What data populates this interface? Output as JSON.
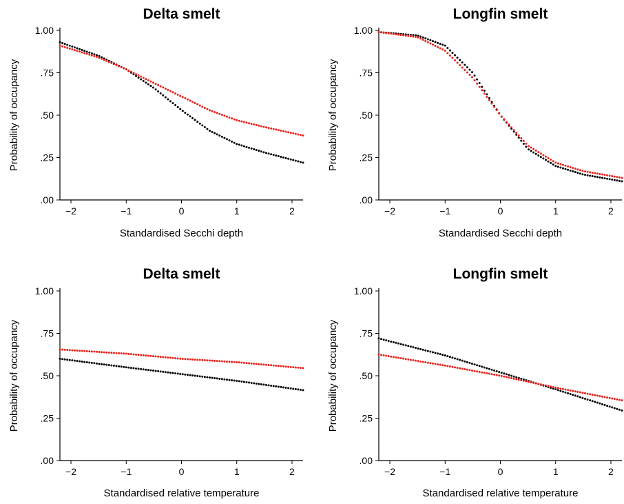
{
  "chart_data": [
    {
      "type": "scatter",
      "title": "Delta smelt",
      "xlabel": "Standardised Secchi depth",
      "ylabel": "Probability of occupancy",
      "xlim": [
        -2.2,
        2.2
      ],
      "ylim": [
        0,
        1
      ],
      "x_ticks": [
        -2,
        -1,
        0,
        1,
        2
      ],
      "x_tick_labels": [
        "−2",
        "−1",
        "0",
        "1",
        "2"
      ],
      "y_ticks": [
        0,
        0.25,
        0.5,
        0.75,
        1.0
      ],
      "y_tick_labels": [
        ".00",
        ".25",
        ".50",
        ".75",
        "1.00"
      ],
      "grid": false,
      "series": [
        {
          "color": "#000000",
          "x": [
            -2.2,
            -1.5,
            -1.0,
            -0.5,
            0,
            0.5,
            1.0,
            1.5,
            2.2
          ],
          "y": [
            0.93,
            0.85,
            0.77,
            0.66,
            0.53,
            0.41,
            0.33,
            0.28,
            0.22
          ]
        },
        {
          "color": "#e8221b",
          "x": [
            -2.2,
            -1.5,
            -1.0,
            -0.5,
            0,
            0.5,
            1.0,
            1.5,
            2.2
          ],
          "y": [
            0.91,
            0.84,
            0.77,
            0.69,
            0.61,
            0.53,
            0.47,
            0.43,
            0.38
          ]
        }
      ]
    },
    {
      "type": "scatter",
      "title": "Longfin smelt",
      "xlabel": "Standardised Secchi depth",
      "ylabel": "Probability of occupancy",
      "xlim": [
        -2.2,
        2.2
      ],
      "ylim": [
        0,
        1
      ],
      "x_ticks": [
        -2,
        -1,
        0,
        1,
        2
      ],
      "x_tick_labels": [
        "−2",
        "−1",
        "0",
        "1",
        "2"
      ],
      "y_ticks": [
        0,
        0.25,
        0.5,
        0.75,
        1.0
      ],
      "y_tick_labels": [
        ".00",
        ".25",
        ".50",
        ".75",
        "1.00"
      ],
      "grid": false,
      "series": [
        {
          "color": "#000000",
          "x": [
            -2.2,
            -1.5,
            -1.0,
            -0.5,
            0,
            0.5,
            1.0,
            1.5,
            2.2
          ],
          "y": [
            0.99,
            0.97,
            0.91,
            0.75,
            0.5,
            0.3,
            0.2,
            0.15,
            0.11
          ]
        },
        {
          "color": "#e8221b",
          "x": [
            -2.2,
            -1.5,
            -1.0,
            -0.5,
            0,
            0.5,
            1.0,
            1.5,
            2.2
          ],
          "y": [
            0.99,
            0.96,
            0.88,
            0.72,
            0.5,
            0.32,
            0.22,
            0.17,
            0.13
          ]
        }
      ]
    },
    {
      "type": "scatter",
      "title": "Delta smelt",
      "xlabel": "Standardised relative temperature",
      "ylabel": "Probability of occupancy",
      "xlim": [
        -2.2,
        2.2
      ],
      "ylim": [
        0,
        1
      ],
      "x_ticks": [
        -2,
        -1,
        0,
        1,
        2
      ],
      "x_tick_labels": [
        "−2",
        "−1",
        "0",
        "1",
        "2"
      ],
      "y_ticks": [
        0,
        0.25,
        0.5,
        0.75,
        1.0
      ],
      "y_tick_labels": [
        ".00",
        ".25",
        ".50",
        ".75",
        "1.00"
      ],
      "grid": false,
      "series": [
        {
          "color": "#000000",
          "x": [
            -2.2,
            -1,
            0,
            1,
            2.2
          ],
          "y": [
            0.6,
            0.55,
            0.51,
            0.47,
            0.415
          ]
        },
        {
          "color": "#e8221b",
          "x": [
            -2.2,
            -1,
            0,
            1,
            2.2
          ],
          "y": [
            0.655,
            0.63,
            0.6,
            0.58,
            0.545
          ]
        }
      ]
    },
    {
      "type": "scatter",
      "title": "Longfin smelt",
      "xlabel": "Standardised relative temperature",
      "ylabel": "Probability of occupancy",
      "xlim": [
        -2.2,
        2.2
      ],
      "ylim": [
        0,
        1
      ],
      "x_ticks": [
        -2,
        -1,
        0,
        1,
        2
      ],
      "x_tick_labels": [
        "−2",
        "−1",
        "0",
        "1",
        "2"
      ],
      "y_ticks": [
        0,
        0.25,
        0.5,
        0.75,
        1.0
      ],
      "y_tick_labels": [
        ".00",
        ".25",
        ".50",
        ".75",
        "1.00"
      ],
      "grid": false,
      "series": [
        {
          "color": "#000000",
          "x": [
            -2.2,
            -1,
            0,
            1,
            2.2
          ],
          "y": [
            0.72,
            0.62,
            0.52,
            0.42,
            0.295
          ]
        },
        {
          "color": "#e8221b",
          "x": [
            -2.2,
            -1,
            0,
            1,
            2.2
          ],
          "y": [
            0.625,
            0.56,
            0.5,
            0.43,
            0.355
          ]
        }
      ]
    }
  ]
}
